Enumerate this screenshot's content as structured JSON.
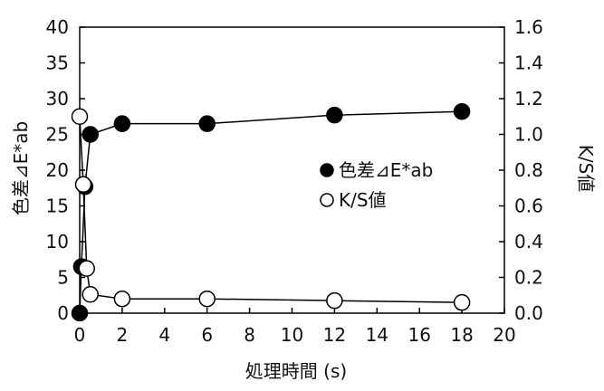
{
  "chart_data": {
    "type": "scatter",
    "x_axis": {
      "label": "処理時間 (s)",
      "min": 0,
      "max": 20,
      "step": 2,
      "ticks": [
        "0",
        "2",
        "4",
        "6",
        "8",
        "10",
        "12",
        "14",
        "16",
        "18",
        "20"
      ]
    },
    "y_axis_left": {
      "label": "色差⊿E*ab",
      "min": 0,
      "max": 40,
      "step": 5,
      "ticks": [
        "0",
        "5",
        "10",
        "15",
        "20",
        "25",
        "30",
        "35",
        "40"
      ]
    },
    "y_axis_right": {
      "label": "K/S値",
      "min": 0,
      "max": 1.6,
      "step": 0.2,
      "ticks": [
        "0.0",
        "0.2",
        "0.4",
        "0.6",
        "0.8",
        "1.0",
        "1.2",
        "1.4",
        "1.6"
      ]
    },
    "grid": false,
    "legend_position": "right",
    "series": [
      {
        "name": "色差⊿E*ab",
        "axis": "left",
        "marker": "filled-circle",
        "color": "#000000",
        "x": [
          0,
          0.08,
          0.25,
          0.5,
          2,
          6,
          12,
          18
        ],
        "y": [
          0,
          6.5,
          17.7,
          25,
          26.5,
          26.5,
          27.7,
          28.2
        ]
      },
      {
        "name": "K/S値",
        "axis": "right",
        "marker": "open-circle",
        "color": "#000000",
        "x": [
          0,
          0.17,
          0.33,
          0.5,
          2,
          6,
          12,
          18
        ],
        "y": [
          1.1,
          0.72,
          0.25,
          0.105,
          0.08,
          0.08,
          0.07,
          0.06
        ]
      }
    ]
  }
}
